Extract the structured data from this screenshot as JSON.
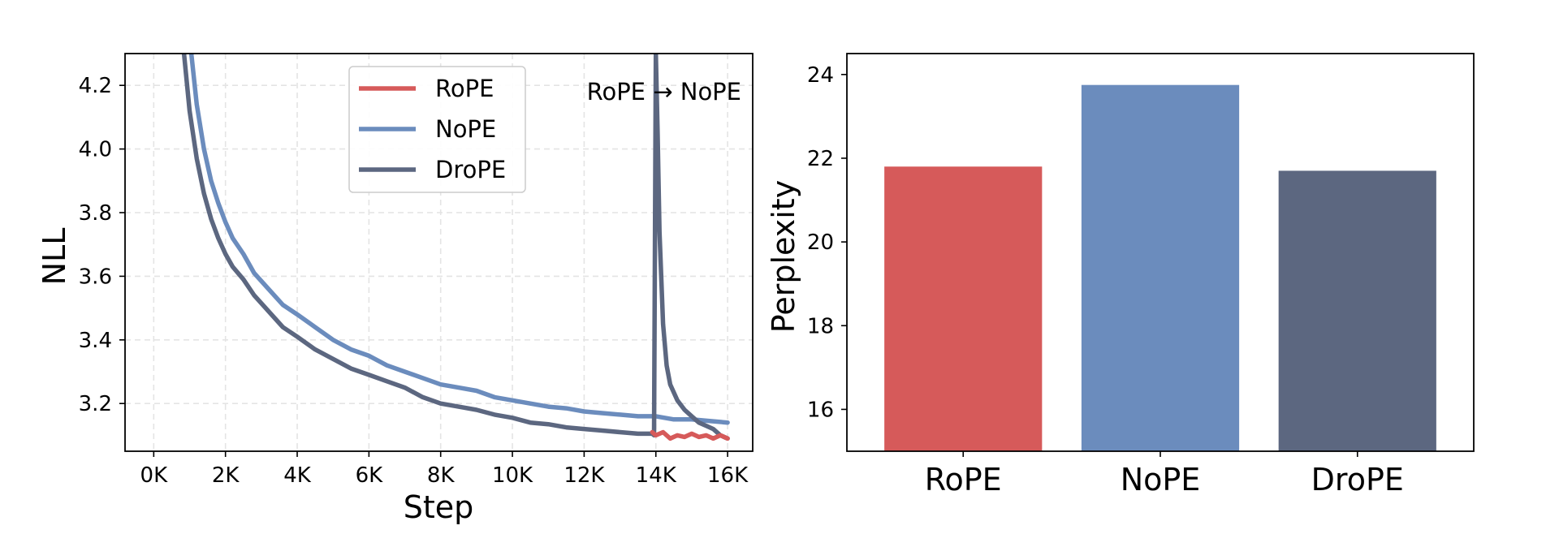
{
  "chart_data": [
    {
      "type": "line",
      "title": "",
      "xlabel": "Step",
      "ylabel": "NLL",
      "xlim": [
        -800,
        16700
      ],
      "ylim": [
        3.05,
        4.3
      ],
      "grid": true,
      "xticks": [
        0,
        2000,
        4000,
        6000,
        8000,
        10000,
        12000,
        14000,
        16000
      ],
      "xtick_labels": [
        "0K",
        "2K",
        "4K",
        "6K",
        "8K",
        "10K",
        "12K",
        "14K",
        "16K"
      ],
      "yticks": [
        3.2,
        3.4,
        3.6,
        3.8,
        4.0,
        4.2
      ],
      "ytick_labels": [
        "3.2",
        "3.4",
        "3.6",
        "3.8",
        "4.0",
        "4.2"
      ],
      "legend_position": "top-center",
      "annotation": "RoPE → NoPE",
      "series": [
        {
          "name": "RoPE",
          "color": "#d65a5a",
          "x": [
            13900,
            14000,
            14200,
            14400,
            14600,
            14800,
            15000,
            15200,
            15400,
            15600,
            15800,
            16000
          ],
          "y": [
            3.11,
            3.1,
            3.11,
            3.09,
            3.1,
            3.095,
            3.105,
            3.095,
            3.1,
            3.09,
            3.1,
            3.09
          ]
        },
        {
          "name": "NoPE",
          "color": "#6b8cbd",
          "x": [
            1000,
            1200,
            1400,
            1600,
            1800,
            2000,
            2200,
            2500,
            2800,
            3200,
            3600,
            4000,
            4500,
            5000,
            5500,
            6000,
            6500,
            7000,
            7500,
            8000,
            8500,
            9000,
            9500,
            10000,
            10500,
            11000,
            11500,
            12000,
            12500,
            13000,
            13500,
            14000,
            14500,
            15000,
            15500,
            16000
          ],
          "y": [
            4.35,
            4.14,
            4.0,
            3.9,
            3.83,
            3.77,
            3.72,
            3.67,
            3.61,
            3.56,
            3.51,
            3.48,
            3.44,
            3.4,
            3.37,
            3.35,
            3.32,
            3.3,
            3.28,
            3.26,
            3.25,
            3.24,
            3.22,
            3.21,
            3.2,
            3.19,
            3.185,
            3.175,
            3.17,
            3.165,
            3.16,
            3.16,
            3.15,
            3.15,
            3.145,
            3.14
          ]
        },
        {
          "name": "DroPE",
          "color": "#5c6780",
          "x": [
            800,
            1000,
            1200,
            1400,
            1600,
            1800,
            2000,
            2200,
            2500,
            2800,
            3200,
            3600,
            4000,
            4500,
            5000,
            5500,
            6000,
            6500,
            7000,
            7500,
            8000,
            8500,
            9000,
            9500,
            10000,
            10500,
            11000,
            11500,
            12000,
            12500,
            13000,
            13500,
            13900,
            13950,
            14000,
            14050,
            14100,
            14200,
            14300,
            14400,
            14600,
            14800,
            15000,
            15200,
            15400,
            15600,
            15800,
            16000
          ],
          "y": [
            4.35,
            4.12,
            3.97,
            3.86,
            3.78,
            3.72,
            3.67,
            3.63,
            3.59,
            3.54,
            3.49,
            3.44,
            3.41,
            3.37,
            3.34,
            3.31,
            3.29,
            3.27,
            3.25,
            3.22,
            3.2,
            3.19,
            3.18,
            3.165,
            3.155,
            3.14,
            3.135,
            3.125,
            3.12,
            3.115,
            3.11,
            3.105,
            3.105,
            3.1,
            4.3,
            4.05,
            3.74,
            3.45,
            3.32,
            3.26,
            3.21,
            3.18,
            3.16,
            3.14,
            3.13,
            3.12,
            3.1,
            3.09
          ]
        }
      ]
    },
    {
      "type": "bar",
      "title": "",
      "xlabel": "",
      "ylabel": "Perplexity",
      "ylim": [
        15,
        24.5
      ],
      "grid": false,
      "yticks": [
        16,
        18,
        20,
        22,
        24
      ],
      "ytick_labels": [
        "16",
        "18",
        "20",
        "22",
        "24"
      ],
      "categories": [
        "RoPE",
        "NoPE",
        "DroPE"
      ],
      "values": [
        21.8,
        23.75,
        21.7
      ],
      "colors": [
        "#d65a5a",
        "#6b8cbd",
        "#5c6780"
      ]
    }
  ]
}
